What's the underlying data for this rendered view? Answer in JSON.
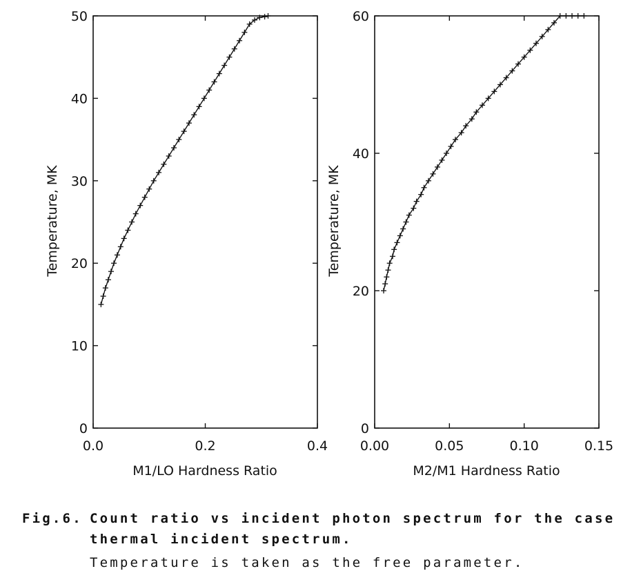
{
  "chart_data": [
    {
      "type": "line",
      "xlabel": "M1/LO Hardness Ratio",
      "ylabel": "Temperature, MK",
      "xlim": [
        0.0,
        0.4
      ],
      "ylim": [
        0,
        50
      ],
      "xticks": [
        0.0,
        0.2,
        0.4
      ],
      "xtick_labels": [
        "0.0",
        "0.2",
        "0.4"
      ],
      "yticks": [
        0,
        10,
        20,
        30,
        40,
        50
      ],
      "ytick_labels": [
        "0",
        "10",
        "20",
        "30",
        "40",
        "50"
      ],
      "grid": false,
      "marker": "+",
      "series": [
        {
          "x": [
            0.014,
            0.018,
            0.022,
            0.027,
            0.032,
            0.037,
            0.043,
            0.049,
            0.055,
            0.062,
            0.069,
            0.076,
            0.084,
            0.092,
            0.1,
            0.108,
            0.117,
            0.126,
            0.135,
            0.144,
            0.153,
            0.162,
            0.171,
            0.18,
            0.189,
            0.198,
            0.207,
            0.216,
            0.225,
            0.234,
            0.243,
            0.252,
            0.261,
            0.27,
            0.279,
            0.288,
            0.297,
            0.306,
            0.312
          ],
          "y": [
            15,
            16,
            17,
            18,
            19,
            20,
            21,
            22,
            23,
            24,
            25,
            26,
            27,
            28,
            29,
            30,
            31,
            32,
            33,
            34,
            35,
            36,
            37,
            38,
            39,
            40,
            41,
            42,
            43,
            44,
            45,
            46,
            47,
            48,
            49,
            49.5,
            49.8,
            49.9,
            50
          ]
        }
      ]
    },
    {
      "type": "line",
      "xlabel": "M2/M1 Hardness Ratio",
      "ylabel": "Temperature, MK",
      "xlim": [
        0.0,
        0.15
      ],
      "ylim": [
        0,
        60
      ],
      "xticks": [
        0.0,
        0.05,
        0.1,
        0.15
      ],
      "xtick_labels": [
        "0.00",
        "0.05",
        "0.10",
        "0.15"
      ],
      "yticks": [
        0,
        20,
        40,
        60
      ],
      "ytick_labels": [
        "0",
        "20",
        "40",
        "60"
      ],
      "grid": false,
      "marker": "+",
      "series": [
        {
          "x": [
            0.006,
            0.007,
            0.008,
            0.009,
            0.01,
            0.012,
            0.013,
            0.015,
            0.017,
            0.019,
            0.021,
            0.023,
            0.026,
            0.028,
            0.031,
            0.033,
            0.036,
            0.039,
            0.042,
            0.045,
            0.048,
            0.051,
            0.054,
            0.058,
            0.061,
            0.065,
            0.068,
            0.072,
            0.076,
            0.08,
            0.084,
            0.088,
            0.092,
            0.096,
            0.1,
            0.104,
            0.108,
            0.112,
            0.116,
            0.12,
            0.124,
            0.128,
            0.132,
            0.136,
            0.14
          ],
          "y": [
            20,
            21,
            22,
            23,
            24,
            25,
            26,
            27,
            28,
            29,
            30,
            31,
            32,
            33,
            34,
            35,
            36,
            37,
            38,
            39,
            40,
            41,
            42,
            43,
            44,
            45,
            46,
            47,
            48,
            49,
            50,
            51,
            52,
            53,
            54,
            55,
            56,
            57,
            58,
            59,
            60,
            60,
            60,
            60,
            60
          ]
        }
      ]
    }
  ],
  "caption": {
    "label": "Fig.6.",
    "line1": "Count ratio vs incident photon spectrum for the case of",
    "line2": "thermal incident spectrum.",
    "line3": "Temperature is taken as the free parameter."
  }
}
